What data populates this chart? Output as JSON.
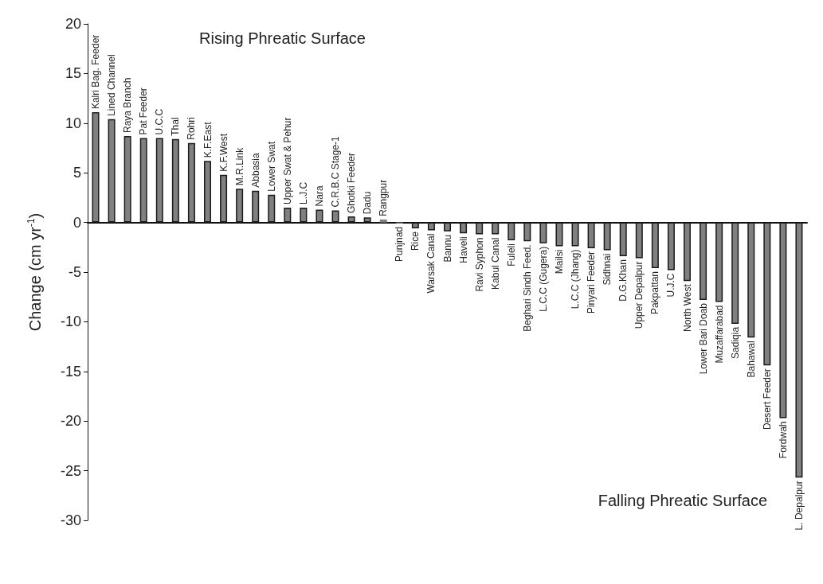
{
  "chart_data": {
    "type": "bar",
    "ylabel": "Change (cm yr$^{-1}$)",
    "categories": [
      "Kalri Bag. Feeder",
      "Lined Channel",
      "Raya Branch",
      "Pat Feeder",
      "U.C.C",
      "Thal",
      "Rohri",
      "K.F.East",
      "K.F.West",
      "M.R.Link",
      "Abbasia",
      "Lower Swat",
      "Upper Swat & Pehur",
      "L.J.C",
      "Nara",
      "C.R.B.C Stage-1",
      "Ghotki Feeder",
      "Dadu",
      "Rangpur",
      "Punjnad",
      "Rice",
      "Warsak Canal",
      "Bannu",
      "Haveli",
      "Ravi Syphon",
      "Kabul Canal",
      "Fuleli",
      "Beghari Sindh Feed.",
      "L.C.C (Gugera)",
      "Mailsi",
      "L.C.C (Jhang)",
      "Pinyari Feeder",
      "Sidhnai",
      "D.G.Khan",
      "Upper Depalpur",
      "Pakpattan",
      "U.J.C",
      "North West",
      "Lower Bari Doab",
      "Muzaffarabad",
      "Sadiqia",
      "Bahawal",
      "Desert Feeder",
      "Fordwah",
      "L. Depalpur"
    ],
    "values": [
      11.1,
      10.4,
      8.7,
      8.5,
      8.5,
      8.4,
      8.0,
      6.2,
      4.8,
      3.4,
      3.2,
      2.8,
      1.5,
      1.5,
      1.3,
      1.2,
      0.6,
      0.5,
      0.3,
      -0.1,
      -0.6,
      -0.8,
      -0.9,
      -1.1,
      -1.2,
      -1.2,
      -1.8,
      -1.9,
      -2.1,
      -2.4,
      -2.4,
      -2.6,
      -2.8,
      -3.4,
      -3.6,
      -4.6,
      -4.8,
      -5.9,
      -7.8,
      -8.0,
      -10.2,
      -11.6,
      -14.4,
      -19.7,
      -25.7
    ],
    "color": "#808080",
    "ylim": [
      -30,
      20
    ],
    "yticks": [
      -30,
      -25,
      -20,
      -15,
      -10,
      -5,
      0,
      5,
      10,
      15,
      20
    ],
    "annotations": [
      "Rising Phreatic Surface",
      "Falling Phreatic Surface"
    ]
  }
}
